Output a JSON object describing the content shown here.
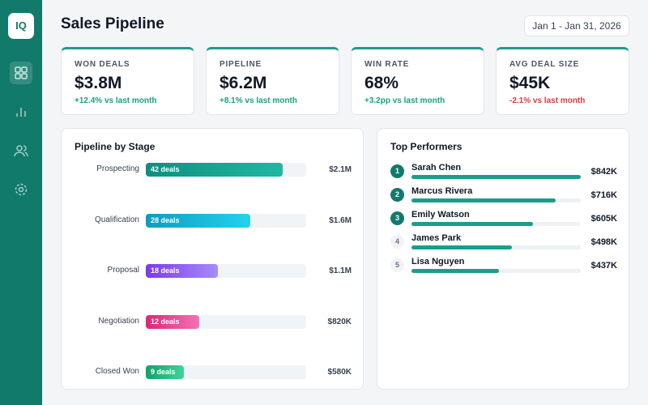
{
  "logo": "IQ",
  "header": {
    "title": "Sales Pipeline",
    "date_range": "Jan 1 - Jan 31, 2026"
  },
  "kpis": [
    {
      "label": "WON DEALS",
      "value": "$3.8M",
      "change": "+12.4% vs last month",
      "trend": "up"
    },
    {
      "label": "PIPELINE",
      "value": "$6.2M",
      "change": "+8.1% vs last month",
      "trend": "up"
    },
    {
      "label": "WIN RATE",
      "value": "68%",
      "change": "+3.2pp vs last month",
      "trend": "up"
    },
    {
      "label": "AVG DEAL SIZE",
      "value": "$45K",
      "change": "-2.1% vs last month",
      "trend": "down"
    }
  ],
  "pipeline": {
    "title": "Pipeline by Stage",
    "stages": [
      {
        "name": "Prospecting",
        "deals": "42 deals",
        "value": 2100000,
        "value_label": "$2.1M"
      },
      {
        "name": "Qualification",
        "deals": "28 deals",
        "value": 1600000,
        "value_label": "$1.6M"
      },
      {
        "name": "Proposal",
        "deals": "18 deals",
        "value": 1100000,
        "value_label": "$1.1M"
      },
      {
        "name": "Negotiation",
        "deals": "12 deals",
        "value": 820000,
        "value_label": "$820K"
      },
      {
        "name": "Closed Won",
        "deals": "9 deals",
        "value": 580000,
        "value_label": "$580K"
      }
    ]
  },
  "performers": {
    "title": "Top Performers",
    "people": [
      {
        "rank": 1,
        "name": "Sarah Chen",
        "value": 842000,
        "value_label": "$842K"
      },
      {
        "rank": 2,
        "name": "Marcus Rivera",
        "value": 716000,
        "value_label": "$716K"
      },
      {
        "rank": 3,
        "name": "Emily Watson",
        "value": 605000,
        "value_label": "$605K"
      },
      {
        "rank": 4,
        "name": "James Park",
        "value": 498000,
        "value_label": "$498K"
      },
      {
        "rank": 5,
        "name": "Lisa Nguyen",
        "value": 437000,
        "value_label": "$437K"
      }
    ]
  }
}
